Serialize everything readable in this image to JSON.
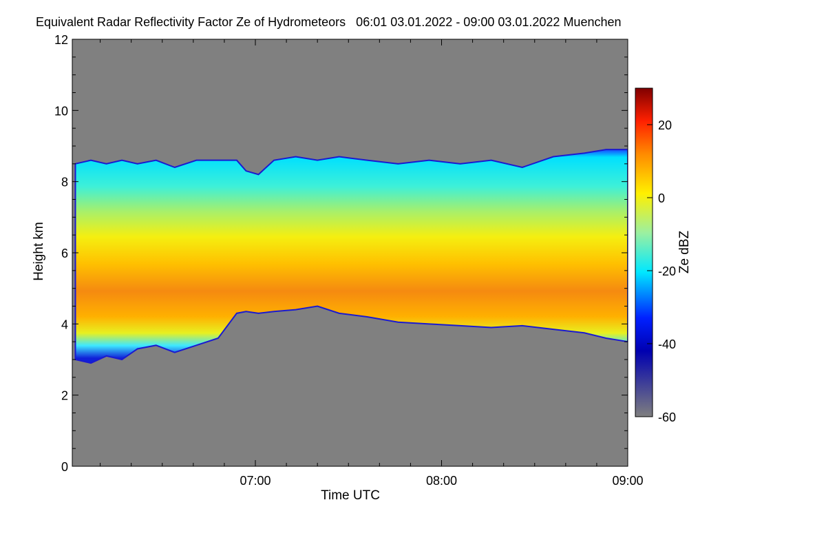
{
  "chart_data": {
    "type": "heatmap",
    "title": "Equivalent Radar Reflectivity Factor Ze of Hydrometeors",
    "time_range": "06:01 03.01.2022 - 09:00 03.01.2022",
    "location": "Muenchen",
    "xlabel": "Time UTC",
    "ylabel": "Height km",
    "xlim": [
      "06:01",
      "09:00"
    ],
    "xticks": [
      "07:00",
      "08:00",
      "09:00"
    ],
    "ylim": [
      0,
      12
    ],
    "yticks": [
      "0",
      "2",
      "4",
      "6",
      "8",
      "10",
      "12"
    ],
    "colorbar": {
      "label": "Ze dBZ",
      "range": [
        -60,
        30
      ],
      "ticks": [
        "-60",
        "-40",
        "-20",
        "0",
        "20"
      ],
      "colormap": [
        "#7f7f7f",
        "#0000b0",
        "#0020ff",
        "#00e8ff",
        "#9cf0a0",
        "#fff000",
        "#ff8a00",
        "#ff2000",
        "#800000"
      ]
    },
    "background_color": "#808080",
    "cloud_layer": {
      "time_min": [
        1,
        6,
        11,
        16,
        21,
        27,
        33,
        40,
        47,
        53,
        56,
        60,
        65,
        72,
        79,
        86,
        95,
        105,
        115,
        125,
        135,
        145,
        155,
        165,
        172,
        179
      ],
      "top_km": [
        8.5,
        8.6,
        8.5,
        8.6,
        8.5,
        8.6,
        8.4,
        8.6,
        8.6,
        8.6,
        8.3,
        8.2,
        8.6,
        8.7,
        8.6,
        8.7,
        8.6,
        8.5,
        8.6,
        8.5,
        8.6,
        8.4,
        8.7,
        8.8,
        8.9,
        8.9
      ],
      "base_km": [
        3.0,
        2.9,
        3.1,
        3.0,
        3.3,
        3.4,
        3.2,
        3.4,
        3.6,
        4.3,
        4.35,
        4.3,
        4.35,
        4.4,
        4.5,
        4.3,
        4.2,
        4.05,
        4.0,
        3.95,
        3.9,
        3.95,
        3.85,
        3.75,
        3.6,
        3.5
      ]
    }
  }
}
